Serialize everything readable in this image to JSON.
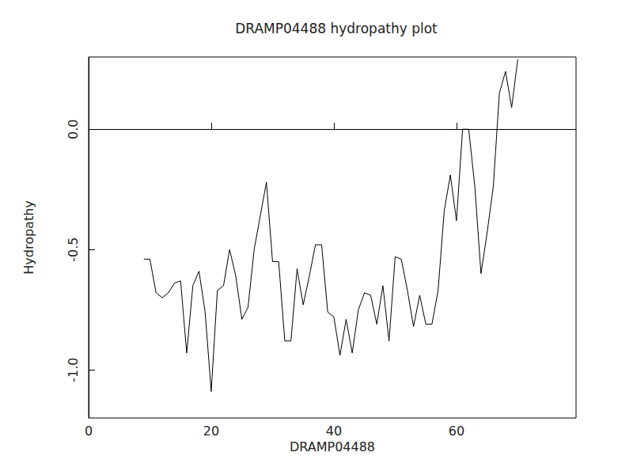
{
  "chart_data": {
    "type": "line",
    "title": "DRAMP04488 hydropathy plot",
    "x_label": "DRAMP04488",
    "y_label": "Hydropathy",
    "color": "#000000",
    "x": [
      9,
      10,
      11,
      12,
      13,
      14,
      15,
      16,
      17,
      18,
      19,
      20,
      21,
      22,
      23,
      24,
      25,
      26,
      27,
      28,
      29,
      30,
      31,
      32,
      33,
      34,
      35,
      36,
      37,
      38,
      39,
      40,
      41,
      42,
      43,
      44,
      45,
      46,
      47,
      48,
      49,
      50,
      51,
      52,
      53,
      54,
      55,
      56,
      57,
      58,
      59,
      60,
      61,
      62,
      63,
      64,
      65,
      66,
      67,
      68,
      69,
      70
    ],
    "values": [
      -0.54,
      -0.54,
      -0.68,
      -0.7,
      -0.68,
      -0.64,
      -0.63,
      -0.93,
      -0.65,
      -0.59,
      -0.76,
      -1.09,
      -0.67,
      -0.65,
      -0.5,
      -0.61,
      -0.79,
      -0.74,
      -0.5,
      -0.36,
      -0.22,
      -0.55,
      -0.55,
      -0.88,
      -0.88,
      -0.58,
      -0.73,
      -0.61,
      -0.48,
      -0.48,
      -0.76,
      -0.78,
      -0.94,
      -0.79,
      -0.93,
      -0.75,
      -0.68,
      -0.69,
      -0.81,
      -0.65,
      -0.88,
      -0.53,
      -0.54,
      -0.67,
      -0.82,
      -0.69,
      -0.81,
      -0.81,
      -0.67,
      -0.34,
      -0.19,
      -0.38,
      0.0,
      0.0,
      -0.24,
      -0.6,
      -0.43,
      -0.24,
      0.15,
      0.24,
      0.09,
      0.29
    ],
    "xlim": [
      0,
      79.5
    ],
    "xticks": [
      0,
      20,
      40,
      60
    ],
    "ylim": [
      -1.2,
      0.3
    ],
    "yticks": [
      {
        "value": -1,
        "label": "-1.0"
      },
      {
        "value": -0.5,
        "label": "-0.5"
      },
      {
        "value": 0,
        "label": "0.0"
      }
    ],
    "grid": false
  }
}
